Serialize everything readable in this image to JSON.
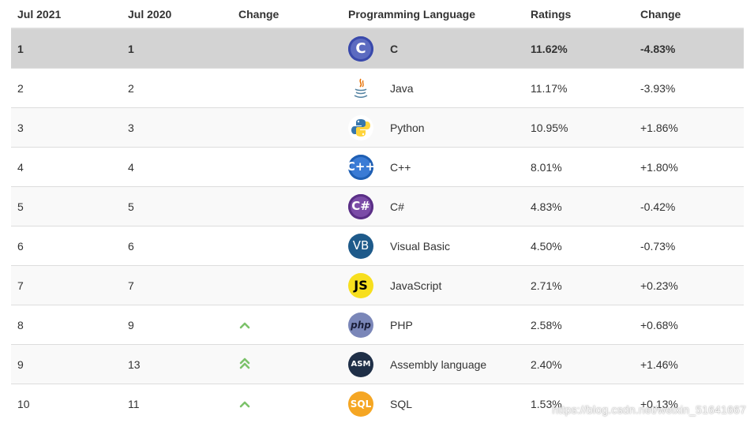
{
  "headers": {
    "jul2021": "Jul 2021",
    "jul2020": "Jul 2020",
    "change": "Change",
    "language": "Programming Language",
    "ratings": "Ratings",
    "change2": "Change"
  },
  "rows": [
    {
      "rank2021": "1",
      "rank2020": "1",
      "trend": "",
      "logo_text": "C",
      "language": "C",
      "rating": "11.62%",
      "change": "-4.83%",
      "icon": "c-logo-icon"
    },
    {
      "rank2021": "2",
      "rank2020": "2",
      "trend": "",
      "logo_text": "",
      "language": "Java",
      "rating": "11.17%",
      "change": "-3.93%",
      "icon": "java-logo-icon"
    },
    {
      "rank2021": "3",
      "rank2020": "3",
      "trend": "",
      "logo_text": "",
      "language": "Python",
      "rating": "10.95%",
      "change": "+1.86%",
      "icon": "python-logo-icon"
    },
    {
      "rank2021": "4",
      "rank2020": "4",
      "trend": "",
      "logo_text": "C++",
      "language": "C++",
      "rating": "8.01%",
      "change": "+1.80%",
      "icon": "cpp-logo-icon"
    },
    {
      "rank2021": "5",
      "rank2020": "5",
      "trend": "",
      "logo_text": "C#",
      "language": "C#",
      "rating": "4.83%",
      "change": "-0.42%",
      "icon": "csharp-logo-icon"
    },
    {
      "rank2021": "6",
      "rank2020": "6",
      "trend": "",
      "logo_text": "VB",
      "language": "Visual Basic",
      "rating": "4.50%",
      "change": "-0.73%",
      "icon": "visual-basic-logo-icon"
    },
    {
      "rank2021": "7",
      "rank2020": "7",
      "trend": "",
      "logo_text": "JS",
      "language": "JavaScript",
      "rating": "2.71%",
      "change": "+0.23%",
      "icon": "javascript-logo-icon"
    },
    {
      "rank2021": "8",
      "rank2020": "9",
      "trend": "up",
      "logo_text": "php",
      "language": "PHP",
      "rating": "2.58%",
      "change": "+0.68%",
      "icon": "php-logo-icon"
    },
    {
      "rank2021": "9",
      "rank2020": "13",
      "trend": "up-double",
      "logo_text": "ASM",
      "language": "Assembly language",
      "rating": "2.40%",
      "change": "+1.46%",
      "icon": "assembly-logo-icon"
    },
    {
      "rank2021": "10",
      "rank2020": "11",
      "trend": "up",
      "logo_text": "SQL",
      "language": "SQL",
      "rating": "1.53%",
      "change": "+0.13%",
      "icon": "sql-logo-icon"
    }
  ],
  "watermark": "https://blog.csdn.net/weixin_51641667"
}
